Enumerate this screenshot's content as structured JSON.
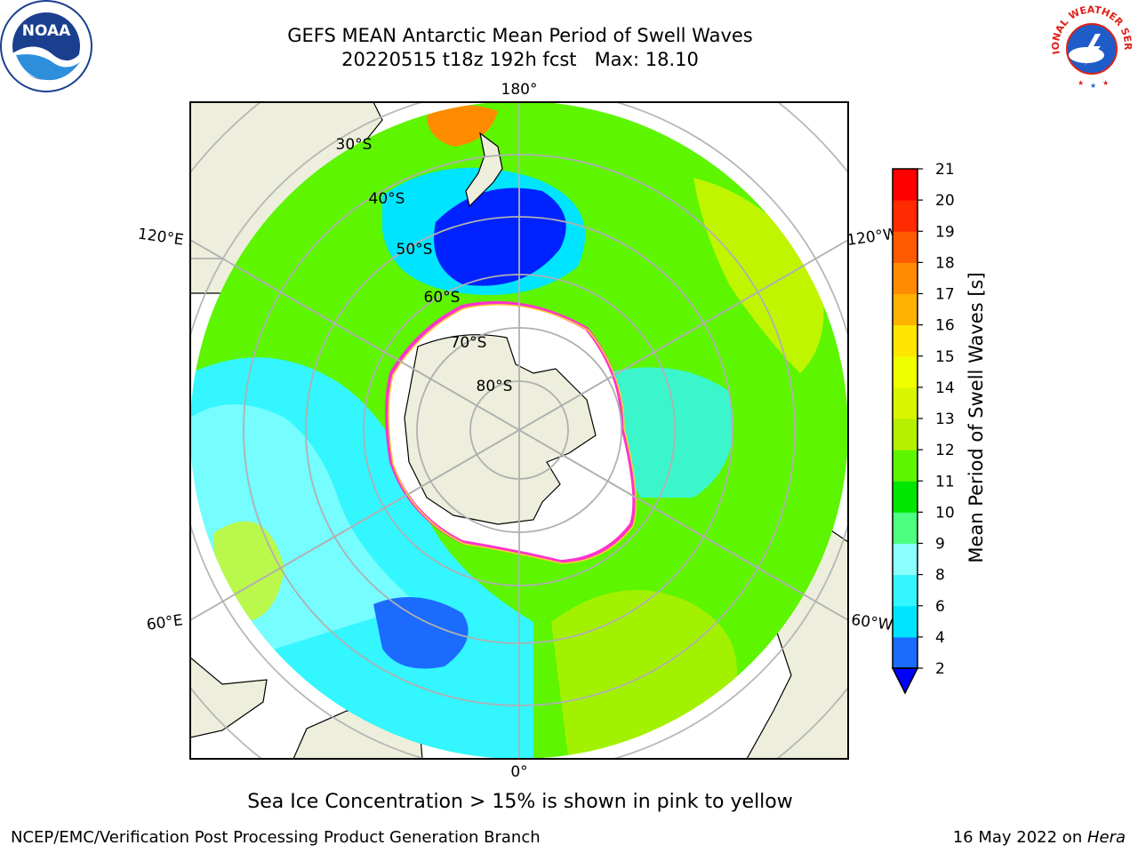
{
  "header": {
    "title_line1": "GEFS MEAN Antarctic Mean Period of Swell Waves",
    "title_line2": "20220515 t18z 192h fcst   Max: 18.10"
  },
  "logos": {
    "left": {
      "icon": "noaa-logo",
      "text": "NOAA"
    },
    "right": {
      "icon": "nws-logo",
      "text": "NATIONAL WEATHER SERVICE"
    }
  },
  "map": {
    "projection": "south-polar-stereographic",
    "longitude_labels": {
      "top": "180°",
      "left_upper": "120°E",
      "right_upper": "120°W",
      "left_lower": "60°E",
      "right_lower": "60°W",
      "bottom": "0°"
    },
    "latitude_labels": [
      "30°S",
      "40°S",
      "50°S",
      "60°S",
      "70°S",
      "80°S"
    ],
    "colors": {
      "land": "#eeeedc",
      "ice_free": "#ffffff",
      "ice_edge": "#ff33cc",
      "ice_edge_inner": "#ffcc33",
      "grid": "#b0b0b0"
    }
  },
  "colorbar": {
    "label": "Mean Period of Swell Waves [s]",
    "ticks": [
      "2",
      "4",
      "6",
      "8",
      "9",
      "10",
      "11",
      "12",
      "13",
      "14",
      "15",
      "16",
      "17",
      "18",
      "19",
      "20",
      "21"
    ],
    "colors": [
      "#1c6bff",
      "#00e5ff",
      "#33f6ff",
      "#8cffff",
      "#4dff80",
      "#00e600",
      "#5df500",
      "#b4f000",
      "#d9f500",
      "#f0ff00",
      "#ffe600",
      "#ffb300",
      "#ff8c00",
      "#ff5a00",
      "#ff2a00",
      "#ff0000"
    ],
    "extend_color": "#0000ff"
  },
  "footer": {
    "ice_note": "Sea Ice Concentration > 15% is shown in pink to yellow",
    "credit": "NCEP/EMC/Verification Post Processing Product Generation Branch",
    "date_prefix": "16 May 2022 on ",
    "date_host": "Hera"
  }
}
